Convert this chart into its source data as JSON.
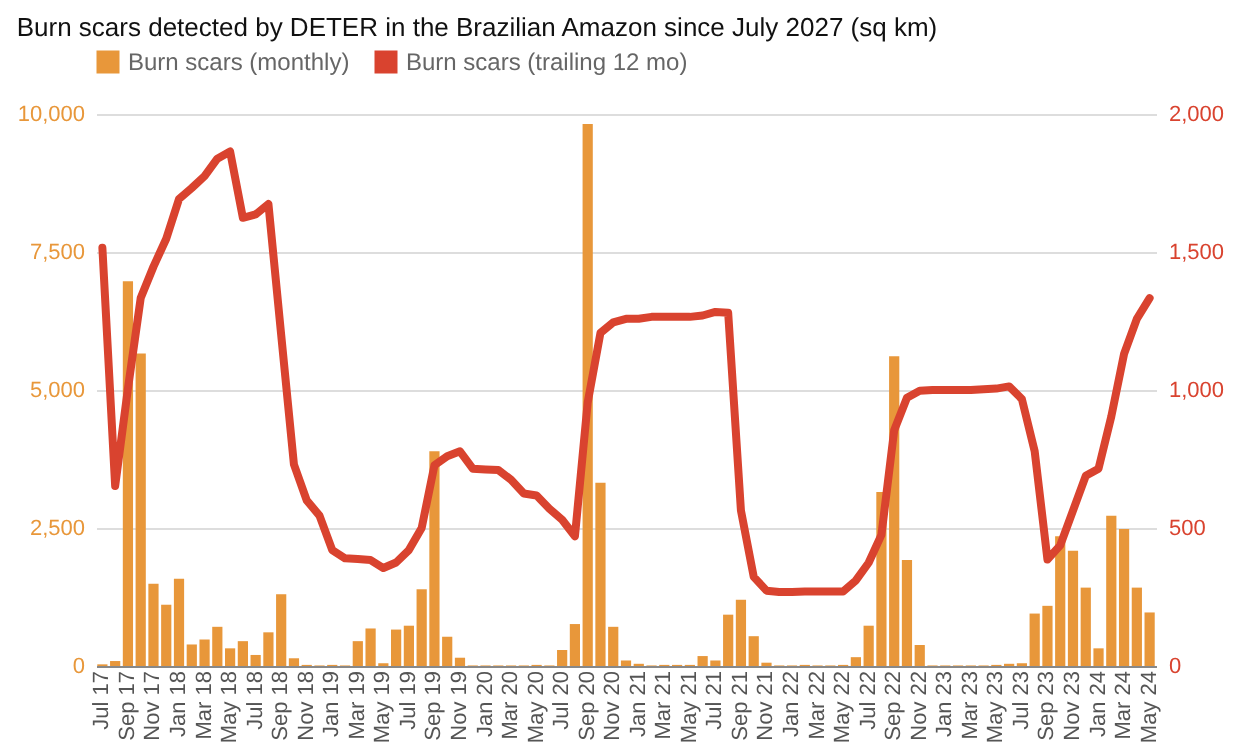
{
  "chart_data": {
    "type": "bar",
    "title": "Burn scars detected by DETER in the Brazilian Amazon since July 2027 (sq km)",
    "categories": [
      "Jul 17",
      null,
      "Sep 17",
      null,
      "Nov 17",
      null,
      "Jan 18",
      null,
      "Mar 18",
      null,
      "May 18",
      null,
      "Jul 18",
      null,
      "Sep 18",
      null,
      "Nov 18",
      null,
      "Jan 19",
      null,
      "Mar 19",
      null,
      "May 19",
      null,
      "Jul 19",
      null,
      "Sep 19",
      null,
      "Nov 19",
      null,
      "Jan 20",
      null,
      "Mar 20",
      null,
      "May 20",
      null,
      "Jul 20",
      null,
      "Sep 20",
      null,
      "Nov 20",
      null,
      "Jan 21",
      null,
      "Mar 21",
      null,
      "May 21",
      null,
      "Jul 21",
      null,
      "Sep 21",
      null,
      "Nov 21",
      null,
      "Jan 22",
      null,
      "Mar 22",
      null,
      "May 22",
      null,
      "Jul 22",
      null,
      "Sep 22",
      null,
      "Nov 22",
      null,
      "Jan 23",
      null,
      "Mar 23",
      null,
      "May 23",
      null,
      "Jul 23",
      null,
      "Sep 23",
      null,
      "Nov 23",
      null,
      "Jan 24",
      null,
      "Mar 24",
      null,
      "May 24"
    ],
    "series": [
      {
        "name": "Burn scars (monthly)",
        "color": "#e8973a",
        "values": [
          30,
          90,
          6970,
          5660,
          1490,
          1110,
          1580,
          390,
          480,
          710,
          320,
          450,
          200,
          610,
          1300,
          140,
          20,
          10,
          20,
          10,
          450,
          680,
          50,
          660,
          730,
          1390,
          3890,
          530,
          150,
          10,
          10,
          10,
          10,
          10,
          20,
          10,
          290,
          760,
          9820,
          3320,
          710,
          100,
          40,
          10,
          20,
          20,
          20,
          180,
          100,
          930,
          1200,
          540,
          60,
          10,
          10,
          20,
          10,
          10,
          20,
          160,
          730,
          3150,
          5610,
          1920,
          380,
          10,
          10,
          10,
          10,
          10,
          20,
          40,
          50,
          950,
          1090,
          2350,
          2090,
          1420,
          320,
          2720,
          2480,
          1420,
          970
        ]
      },
      {
        "name": "Burn scars (trailing 12 mo)",
        "type": "line",
        "axis": "y2",
        "color": "#d9432f",
        "values": [
          1515,
          652,
          1005,
          1333,
          1447,
          1548,
          1692,
          1732,
          1775,
          1838,
          1864,
          1624,
          1636,
          1674,
          1200,
          730,
          600,
          545,
          420,
          390,
          388,
          384,
          355,
          375,
          420,
          500,
          727,
          760,
          778,
          715,
          712,
          710,
          675,
          625,
          618,
          570,
          530,
          470,
          955,
          1207,
          1245,
          1258,
          1258,
          1265,
          1265,
          1265,
          1265,
          1270,
          1283,
          1280,
          563,
          323,
          273,
          268,
          268,
          270,
          270,
          270,
          270,
          310,
          374,
          475,
          854,
          972,
          997,
          1000,
          1000,
          1000,
          1000,
          1003,
          1005,
          1013,
          967,
          778,
          386,
          437,
          563,
          689,
          715,
          904,
          1131,
          1258,
          1333
        ]
      }
    ],
    "ylim": [
      0,
      10000
    ],
    "yticks": [
      0,
      {
        "value": 2500,
        "label": "2,500"
      },
      {
        "value": 5000,
        "label": "5,000"
      },
      {
        "value": 7500,
        "label": "7,500"
      },
      {
        "value": 10000,
        "label": "10,000"
      }
    ],
    "y2lim": [
      0,
      2000
    ],
    "y2ticks": [
      0,
      500,
      {
        "value": 1000,
        "label": "1,000"
      },
      {
        "value": 1500,
        "label": "1,500"
      },
      {
        "value": 2000,
        "label": "2,000"
      }
    ],
    "grid": "y",
    "legend": "top",
    "line_style": "solid",
    "marker": "none"
  }
}
